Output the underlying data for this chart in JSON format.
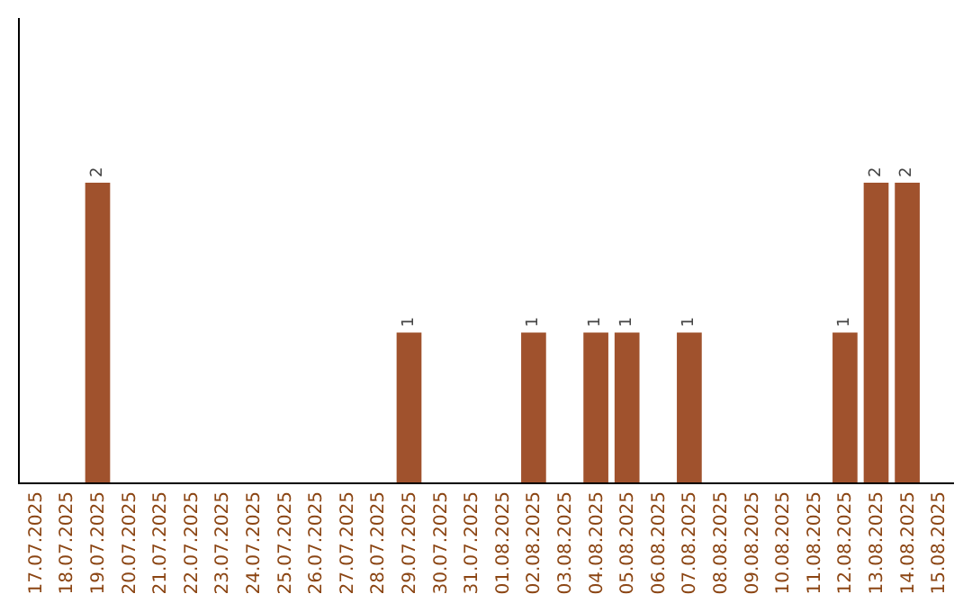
{
  "chart_data": {
    "type": "bar",
    "categories": [
      "17.07.2025",
      "18.07.2025",
      "19.07.2025",
      "20.07.2025",
      "21.07.2025",
      "22.07.2025",
      "23.07.2025",
      "24.07.2025",
      "25.07.2025",
      "26.07.2025",
      "27.07.2025",
      "28.07.2025",
      "29.07.2025",
      "30.07.2025",
      "31.07.2025",
      "01.08.2025",
      "02.08.2025",
      "03.08.2025",
      "04.08.2025",
      "05.08.2025",
      "06.08.2025",
      "07.08.2025",
      "08.08.2025",
      "09.08.2025",
      "10.08.2025",
      "11.08.2025",
      "12.08.2025",
      "13.08.2025",
      "14.08.2025",
      "15.08.2025"
    ],
    "values": [
      0,
      0,
      2,
      0,
      0,
      0,
      0,
      0,
      0,
      0,
      0,
      0,
      1,
      0,
      0,
      0,
      1,
      0,
      1,
      1,
      0,
      1,
      0,
      0,
      0,
      0,
      1,
      2,
      2,
      0
    ],
    "value_labels": [
      null,
      null,
      "2",
      null,
      null,
      null,
      null,
      null,
      null,
      null,
      null,
      null,
      "1",
      null,
      null,
      null,
      "1",
      null,
      "1",
      "1",
      null,
      "1",
      null,
      null,
      null,
      null,
      "1",
      "2",
      "2",
      null
    ],
    "color": "#a0522d",
    "ylim": [
      0,
      3.1
    ],
    "tick_labels": "x"
  }
}
